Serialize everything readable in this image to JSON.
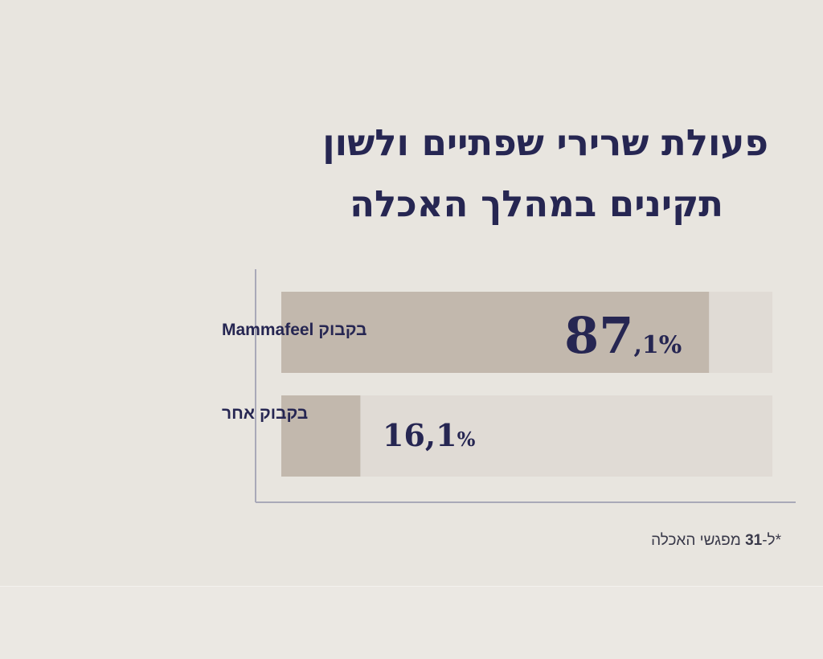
{
  "title_lines": [
    "פעולת שרירי שפתיים ולשון",
    "תקינים במהלך האכלה"
  ],
  "footnote": {
    "prefix": "*ל-",
    "number": "31",
    "suffix": " מפגשי האכלה"
  },
  "colors": {
    "background": "#e8e5df",
    "title": "#262652",
    "bar_fill": "#c2b8ad",
    "bar_track": "#e0dbd5",
    "axis": "#a9a9b8"
  },
  "chart_data": {
    "type": "bar",
    "orientation": "horizontal",
    "categories": [
      "בקבוק Mammafeel",
      "בקבוק אחר"
    ],
    "values": [
      87.1,
      16.1
    ],
    "value_labels": [
      {
        "main": "87",
        "decimal": ",1%"
      },
      {
        "main": "16,1",
        "decimal": "%"
      }
    ],
    "xlim": [
      0,
      100
    ],
    "unit": "%"
  }
}
